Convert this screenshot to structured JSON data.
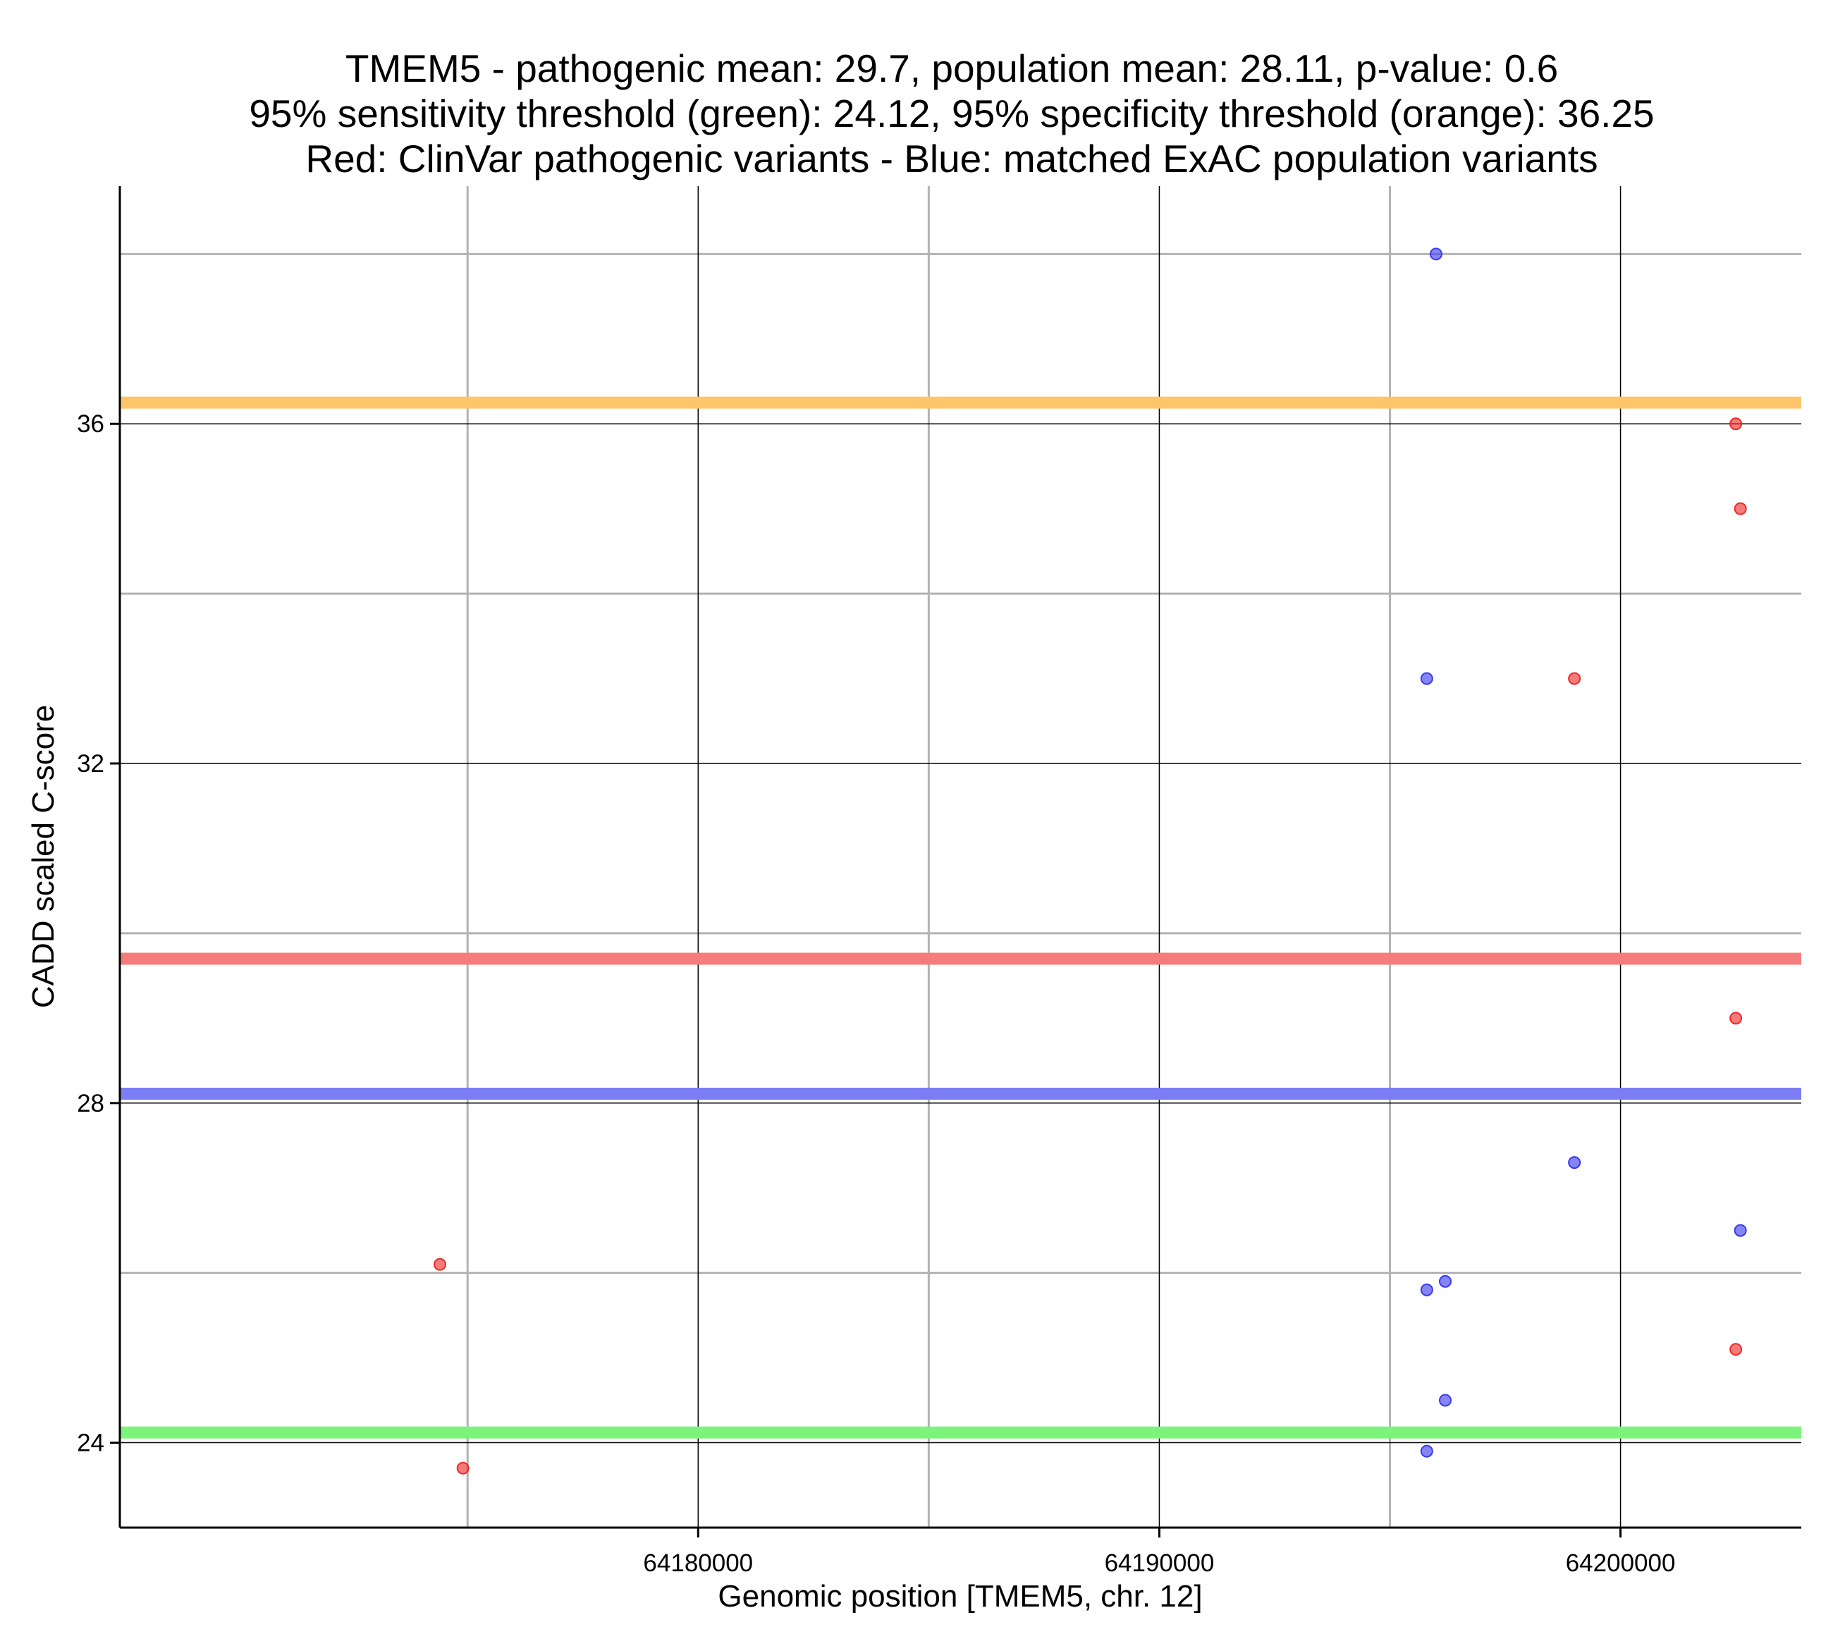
{
  "chart_data": {
    "type": "scatter",
    "title_lines": [
      "TMEM5 - pathogenic mean: 29.7, population mean: 28.11, p-value: 0.6",
      "95% sensitivity threshold (green): 24.12, 95% specificity threshold (orange): 36.25",
      "Red: ClinVar pathogenic variants - Blue: matched ExAC population variants"
    ],
    "xlabel": "Genomic position [TMEM5, chr. 12]",
    "ylabel": "CADD scaled C-score",
    "xlim": [
      64167460,
      64203920
    ],
    "ylim": [
      23.0,
      38.8
    ],
    "x_major_ticks": [
      64180000,
      64190000,
      64200000
    ],
    "x_minor_ticks": [
      64175000,
      64185000,
      64195000
    ],
    "y_major_ticks": [
      24,
      28,
      32,
      36
    ],
    "y_minor_ticks": [
      26,
      30,
      34,
      38
    ],
    "x_tick_labels": [
      "64180000",
      "64190000",
      "64200000"
    ],
    "y_tick_labels": [
      "24",
      "28",
      "32",
      "36"
    ],
    "grid": true,
    "series": [
      {
        "color": "#ef2929",
        "points": [
          {
            "x": 64174400,
            "y": 26.1
          },
          {
            "x": 64174900,
            "y": 23.7
          },
          {
            "x": 64199000,
            "y": 33.0
          },
          {
            "x": 64202500,
            "y": 36.0
          },
          {
            "x": 64202600,
            "y": 35.0
          },
          {
            "x": 64202500,
            "y": 29.0
          },
          {
            "x": 64202500,
            "y": 25.1
          }
        ]
      },
      {
        "color": "#3a3af0",
        "points": [
          {
            "x": 64196000,
            "y": 38.0
          },
          {
            "x": 64195800,
            "y": 33.0
          },
          {
            "x": 64199000,
            "y": 27.3
          },
          {
            "x": 64196200,
            "y": 25.9
          },
          {
            "x": 64195800,
            "y": 25.8
          },
          {
            "x": 64196200,
            "y": 24.5
          },
          {
            "x": 64195800,
            "y": 23.9
          },
          {
            "x": 64202600,
            "y": 26.5
          }
        ]
      }
    ],
    "reference_lines": [
      {
        "y": 36.25,
        "color": "#ffc56b"
      },
      {
        "y": 29.7,
        "color": "#f47c7c"
      },
      {
        "y": 28.11,
        "color": "#7c7cf4"
      },
      {
        "y": 24.12,
        "color": "#7cf47c"
      }
    ]
  }
}
